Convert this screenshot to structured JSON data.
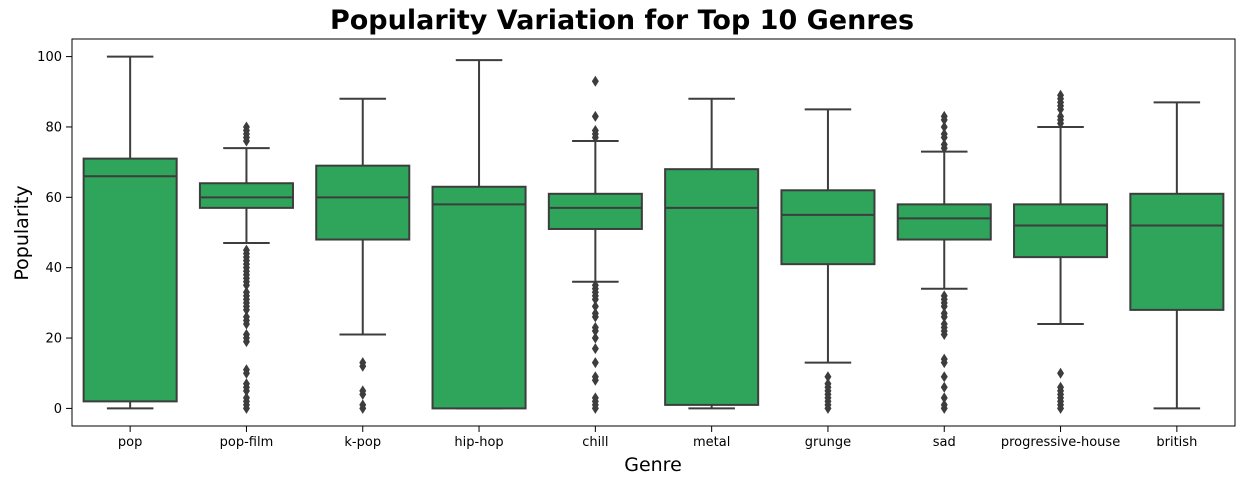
{
  "chart_data": {
    "type": "box",
    "title": "Popularity Variation for Top 10 Genres",
    "xlabel": "Genre",
    "ylabel": "Popularity",
    "ylim": [
      -5,
      105
    ],
    "yticks": [
      0,
      20,
      40,
      60,
      80,
      100
    ],
    "grid": false,
    "colors": {
      "box": "#2ea55a",
      "line": "#3d3d3d"
    },
    "categories": [
      "pop",
      "pop-film",
      "k-pop",
      "hip-hop",
      "chill",
      "metal",
      "grunge",
      "sad",
      "progressive-house",
      "british"
    ],
    "boxes": [
      {
        "category": "pop",
        "whisker_low": 0,
        "q1": 2,
        "median": 66,
        "q3": 71,
        "whisker_high": 100,
        "outliers": []
      },
      {
        "category": "pop-film",
        "whisker_low": 47,
        "q1": 57,
        "median": 60,
        "q3": 64,
        "whisker_high": 74,
        "outliers": [
          0,
          1,
          2,
          3,
          5,
          6,
          7,
          10,
          11,
          19,
          20,
          21,
          24,
          25,
          26,
          28,
          29,
          30,
          31,
          32,
          33,
          35,
          36,
          37,
          38,
          39,
          40,
          41,
          42,
          43,
          44,
          45,
          76,
          77,
          78,
          79,
          80
        ]
      },
      {
        "category": "k-pop",
        "whisker_low": 21,
        "q1": 48,
        "median": 60,
        "q3": 69,
        "whisker_high": 88,
        "outliers": [
          0,
          1,
          4,
          5,
          12,
          13
        ]
      },
      {
        "category": "hip-hop",
        "whisker_low": 0,
        "q1": 0,
        "median": 58,
        "q3": 63,
        "whisker_high": 99,
        "outliers": []
      },
      {
        "category": "chill",
        "whisker_low": 36,
        "q1": 51,
        "median": 57,
        "q3": 61,
        "whisker_high": 76,
        "outliers": [
          0,
          1,
          2,
          3,
          8,
          9,
          13,
          17,
          20,
          22,
          23,
          26,
          27,
          29,
          31,
          32,
          33,
          34,
          35,
          77,
          78,
          79,
          83,
          93
        ]
      },
      {
        "category": "metal",
        "whisker_low": 0,
        "q1": 1,
        "median": 57,
        "q3": 68,
        "whisker_high": 88,
        "outliers": []
      },
      {
        "category": "grunge",
        "whisker_low": 13,
        "q1": 41,
        "median": 55,
        "q3": 62,
        "whisker_high": 85,
        "outliers": [
          0,
          1,
          2,
          3,
          4,
          5,
          6,
          7,
          9
        ]
      },
      {
        "category": "sad",
        "whisker_low": 34,
        "q1": 48,
        "median": 54,
        "q3": 58,
        "whisker_high": 73,
        "outliers": [
          0,
          1,
          3,
          6,
          9,
          13,
          14,
          21,
          22,
          23,
          24,
          26,
          27,
          29,
          30,
          31,
          32,
          74,
          75,
          77,
          78,
          80,
          82,
          83
        ]
      },
      {
        "category": "progressive-house",
        "whisker_low": 24,
        "q1": 43,
        "median": 52,
        "q3": 58,
        "whisker_high": 80,
        "outliers": [
          0,
          1,
          2,
          3,
          4,
          5,
          6,
          10,
          81,
          82,
          83,
          85,
          86,
          87,
          88,
          89
        ]
      },
      {
        "category": "british",
        "whisker_low": 0,
        "q1": 28,
        "median": 52,
        "q3": 61,
        "whisker_high": 87,
        "outliers": []
      }
    ]
  }
}
